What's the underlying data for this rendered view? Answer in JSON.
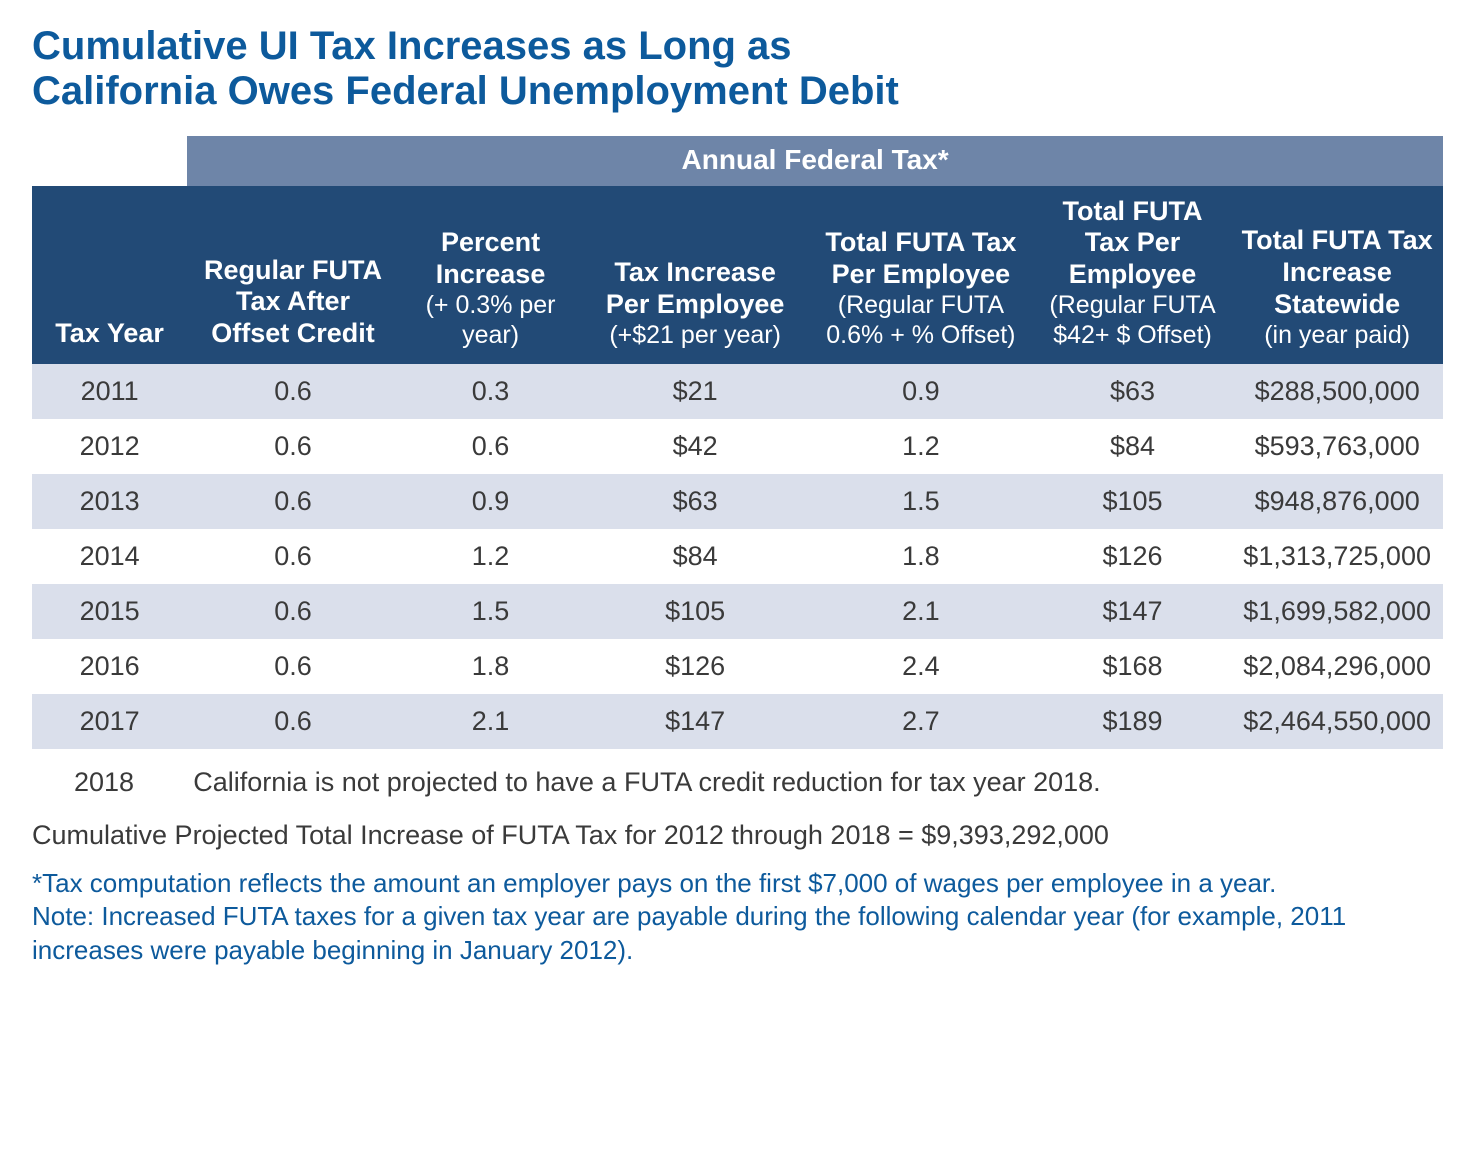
{
  "colors": {
    "title": "#0d5a9c",
    "banner_bg": "#6e85a8",
    "header_bg": "#224a76",
    "row_even_bg": "#dadfeb",
    "row_odd_bg": "#ffffff",
    "body_text": "#3a3a3a",
    "footnote_text": "#0d5a9c"
  },
  "title_line1": "Cumulative UI Tax Increases as Long as",
  "title_line2": "California Owes Federal Unemployment Debit",
  "banner_label": "Annual Federal Tax*",
  "columns": {
    "c0": {
      "main": "Tax Year"
    },
    "c1": {
      "main": "Regular FUTA Tax After Offset Credit"
    },
    "c2": {
      "main": "Percent Increase",
      "sub": "(+ 0.3% per year)"
    },
    "c3": {
      "main": "Tax Increase Per Employee",
      "sub": "(+$21 per year)"
    },
    "c4": {
      "main": "Total FUTA Tax Per Employee",
      "sub": "(Regular FUTA 0.6% + % Offset)"
    },
    "c5": {
      "main": "Total FUTA Tax Per Employee",
      "sub": "(Regular FUTA $42+ $ Offset)"
    },
    "c6": {
      "main": "Total FUTA Tax Increase Statewide",
      "sub": "(in year paid)"
    }
  },
  "rows": [
    {
      "year": "2011",
      "reg": "0.6",
      "pct": "0.3",
      "incr": "$21",
      "totpct": "0.9",
      "totdol": "$63",
      "state": "$288,500,000"
    },
    {
      "year": "2012",
      "reg": "0.6",
      "pct": "0.6",
      "incr": "$42",
      "totpct": "1.2",
      "totdol": "$84",
      "state": "$593,763,000"
    },
    {
      "year": "2013",
      "reg": "0.6",
      "pct": "0.9",
      "incr": "$63",
      "totpct": "1.5",
      "totdol": "$105",
      "state": "$948,876,000"
    },
    {
      "year": "2014",
      "reg": "0.6",
      "pct": "1.2",
      "incr": "$84",
      "totpct": "1.8",
      "totdol": "$126",
      "state": "$1,313,725,000"
    },
    {
      "year": "2015",
      "reg": "0.6",
      "pct": "1.5",
      "incr": "$105",
      "totpct": "2.1",
      "totdol": "$147",
      "state": "$1,699,582,000"
    },
    {
      "year": "2016",
      "reg": "0.6",
      "pct": "1.8",
      "incr": "$126",
      "totpct": "2.4",
      "totdol": "$168",
      "state": "$2,084,296,000"
    },
    {
      "year": "2017",
      "reg": "0.6",
      "pct": "2.1",
      "incr": "$147",
      "totpct": "2.7",
      "totdol": "$189",
      "state": "$2,464,550,000"
    }
  ],
  "note2018_year": "2018",
  "note2018_msg": "California is not projected to have a FUTA credit reduction for tax year 2018.",
  "cumulative_line": "Cumulative Projected Total Increase of FUTA Tax for 2012 through 2018 = $9,393,292,000",
  "footnote_l1": "*Tax computation reflects the amount an employer pays on the first $7,000 of wages per employee in a year.",
  "footnote_l2": "Note: Increased FUTA taxes for a given tax year are payable during the following calendar year (for example, 2011 increases were payable beginning in January 2012).",
  "column_widths": [
    "11%",
    "15%",
    "13%",
    "16%",
    "16%",
    "14%",
    "15%"
  ]
}
